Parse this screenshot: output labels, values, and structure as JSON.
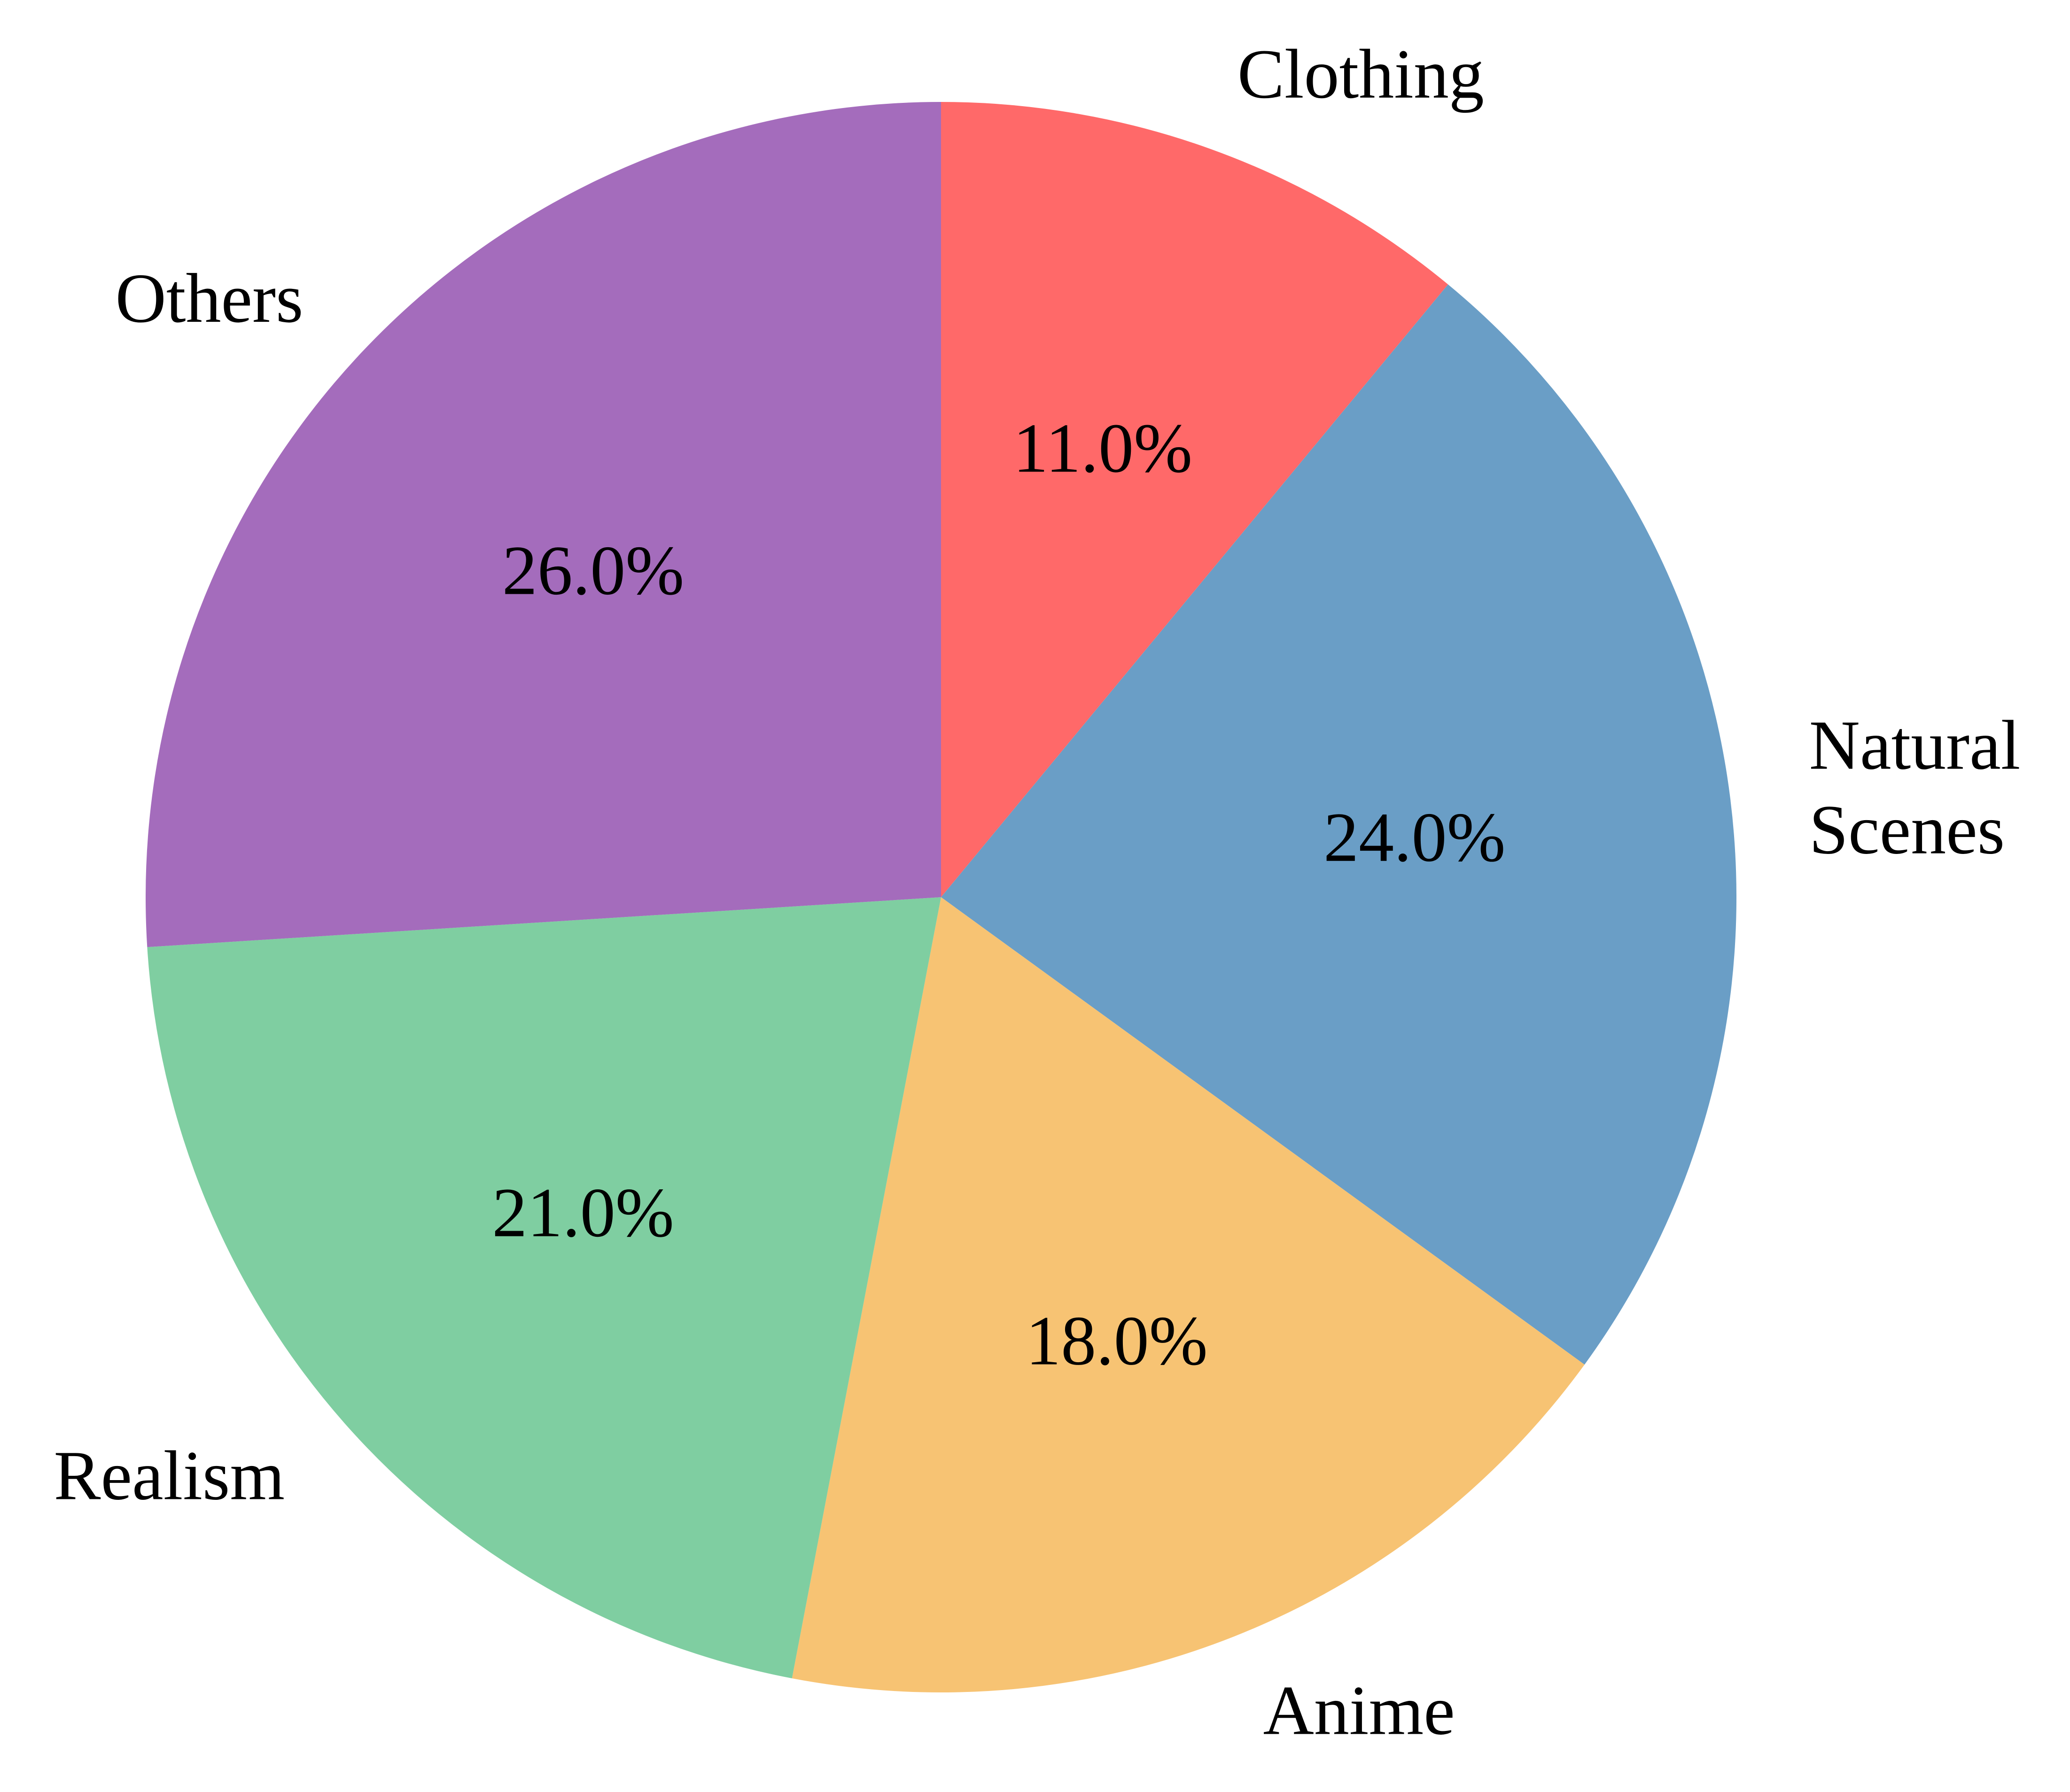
{
  "chart_data": {
    "type": "pie",
    "categories": [
      "Clothing",
      "Natural Scenes",
      "Anime",
      "Realism",
      "Others"
    ],
    "label_lines": [
      [
        "Clothing"
      ],
      [
        "Natural",
        "Scenes"
      ],
      [
        "Anime"
      ],
      [
        "Realism"
      ],
      [
        "Others"
      ]
    ],
    "values": [
      11.0,
      24.0,
      18.0,
      21.0,
      26.0
    ],
    "percent_labels": [
      "11.0%",
      "24.0%",
      "18.0%",
      "21.0%",
      "26.0%"
    ],
    "colors": [
      "#ff6969",
      "#6a9ec6",
      "#f7c373",
      "#7fcea1",
      "#a46cbc"
    ],
    "start": "top",
    "direction": "clockwise",
    "title": "",
    "legend": "none"
  }
}
